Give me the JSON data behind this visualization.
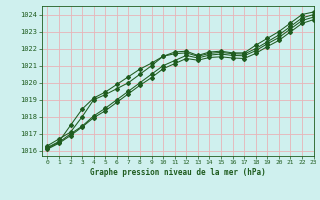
{
  "title": "Graphe pression niveau de la mer (hPa)",
  "xlim": [
    -0.5,
    23
  ],
  "ylim": [
    1015.7,
    1024.5
  ],
  "yticks": [
    1016,
    1017,
    1018,
    1019,
    1020,
    1021,
    1022,
    1023,
    1024
  ],
  "xticks": [
    0,
    1,
    2,
    3,
    4,
    5,
    6,
    7,
    8,
    9,
    10,
    11,
    12,
    13,
    14,
    15,
    16,
    17,
    18,
    19,
    20,
    21,
    22,
    23
  ],
  "bg_color": "#cff0ee",
  "grid_color": "#e8b4b8",
  "line_color": "#1f5c1f",
  "line1_x": [
    0,
    1,
    2,
    3,
    4,
    5,
    6,
    7,
    8,
    9,
    10,
    11,
    12,
    13,
    14,
    15,
    16,
    17,
    18,
    19,
    20,
    21,
    22,
    23
  ],
  "line1_y": [
    1016.3,
    1016.7,
    1017.1,
    1018.0,
    1019.0,
    1019.3,
    1019.65,
    1020.0,
    1020.5,
    1021.0,
    1021.55,
    1021.8,
    1021.85,
    1021.6,
    1021.8,
    1021.85,
    1021.75,
    1021.75,
    1022.2,
    1022.6,
    1023.0,
    1023.5,
    1024.0,
    1024.15
  ],
  "line2_x": [
    0,
    1,
    2,
    3,
    4,
    5,
    6,
    7,
    8,
    9,
    10,
    11,
    12,
    13,
    14,
    15,
    16,
    17,
    18,
    19,
    20,
    21,
    22,
    23
  ],
  "line2_y": [
    1016.2,
    1016.55,
    1017.5,
    1018.45,
    1019.1,
    1019.45,
    1019.9,
    1020.35,
    1020.8,
    1021.15,
    1021.55,
    1021.7,
    1021.75,
    1021.55,
    1021.72,
    1021.78,
    1021.7,
    1021.68,
    1022.0,
    1022.4,
    1022.8,
    1023.3,
    1023.8,
    1024.0
  ],
  "line3_x": [
    0,
    1,
    2,
    3,
    4,
    5,
    6,
    7,
    8,
    9,
    10,
    11,
    12,
    13,
    14,
    15,
    16,
    17,
    18,
    19,
    20,
    21,
    22,
    23
  ],
  "line3_y": [
    1016.15,
    1016.5,
    1017.0,
    1017.45,
    1018.05,
    1018.5,
    1019.0,
    1019.5,
    1020.0,
    1020.5,
    1021.0,
    1021.3,
    1021.6,
    1021.45,
    1021.62,
    1021.68,
    1021.6,
    1021.58,
    1021.88,
    1022.28,
    1022.65,
    1023.15,
    1023.65,
    1023.85
  ],
  "line4_x": [
    0,
    1,
    2,
    3,
    4,
    5,
    6,
    7,
    8,
    9,
    10,
    11,
    12,
    13,
    14,
    15,
    16,
    17,
    18,
    19,
    20,
    21,
    22,
    23
  ],
  "line4_y": [
    1016.1,
    1016.45,
    1016.9,
    1017.4,
    1017.95,
    1018.35,
    1018.85,
    1019.35,
    1019.85,
    1020.3,
    1020.82,
    1021.12,
    1021.42,
    1021.32,
    1021.48,
    1021.52,
    1021.45,
    1021.42,
    1021.72,
    1022.12,
    1022.48,
    1022.98,
    1023.48,
    1023.7
  ]
}
